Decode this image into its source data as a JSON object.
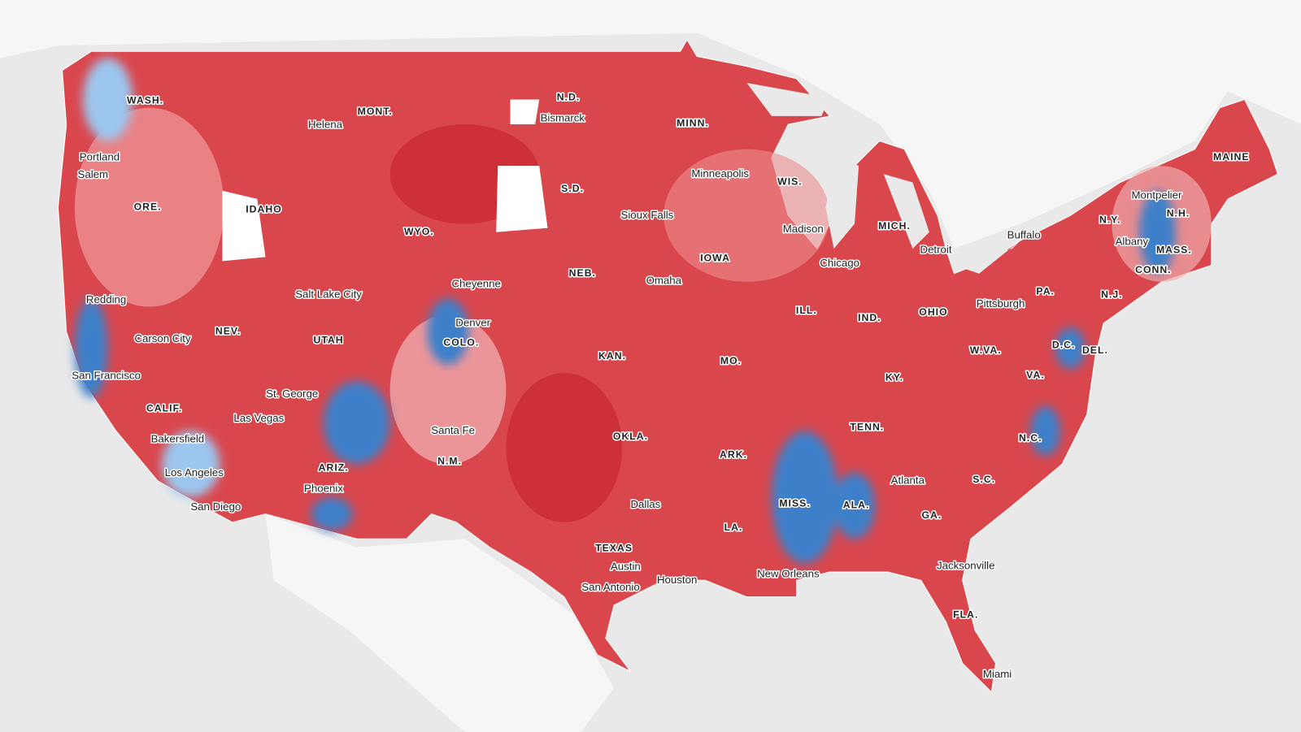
{
  "map": {
    "state_labels": [
      "WASH.",
      "MONT.",
      "N.D.",
      "MINN.",
      "ORE.",
      "IDAHO",
      "WYO.",
      "S.D.",
      "WIS.",
      "MICH.",
      "MAINE",
      "N.Y.",
      "N.H.",
      "MASS.",
      "CONN.",
      "IOWA",
      "NEB.",
      "PA.",
      "N.J.",
      "NEV.",
      "UTAH",
      "COLO.",
      "ILL.",
      "IND.",
      "OHIO",
      "D.C.",
      "DEL.",
      "W.VA.",
      "KAN.",
      "MO.",
      "KY.",
      "VA.",
      "CALIF.",
      "TENN.",
      "OKLA.",
      "N.C.",
      "ARK.",
      "ARIZ.",
      "N.M.",
      "S.C.",
      "MISS.",
      "ALA.",
      "GA.",
      "LA.",
      "TEXAS",
      "FLA."
    ],
    "city_labels": [
      "Helena",
      "Bismarck",
      "Portland",
      "Salem",
      "Minneapolis",
      "Sioux Falls",
      "Madison",
      "Detroit",
      "Buffalo",
      "Montpelier",
      "Albany",
      "Chicago",
      "Omaha",
      "Cheyenne",
      "Salt Lake City",
      "Redding",
      "Pittsburgh",
      "Denver",
      "Carson City",
      "San Francisco",
      "St. George",
      "Las Vegas",
      "Bakersfield",
      "Santa Fe",
      "Los Angeles",
      "Atlanta",
      "Phoenix",
      "San Diego",
      "Dallas",
      "New Orleans",
      "Houston",
      "Austin",
      "Jacksonville",
      "San Antonio",
      "Miami"
    ]
  }
}
